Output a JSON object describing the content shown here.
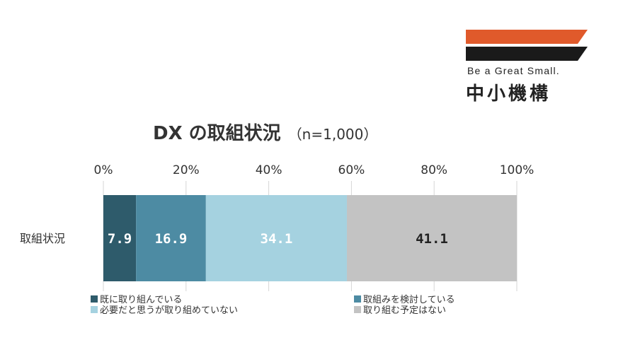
{
  "logo": {
    "tagline": "Be a Great Small.",
    "name": "中小機構",
    "colors": {
      "top_bar": "#e05a2b",
      "bottom_bar": "#1a1a1a"
    }
  },
  "chart_data": {
    "type": "bar",
    "orientation": "horizontal",
    "stacked": true,
    "title": "DX の取組状況",
    "subtitle": "（n=1,000）",
    "categories": [
      "取組状況"
    ],
    "xlim": [
      0,
      100
    ],
    "x_ticks": [
      "0%",
      "20%",
      "40%",
      "60%",
      "80%",
      "100%"
    ],
    "grid": true,
    "legend_position": "bottom",
    "series": [
      {
        "name": "既に取り組んでいる",
        "values": [
          7.9
        ],
        "label": "7.9",
        "color": "#2e5b6b",
        "label_color": "#ffffff"
      },
      {
        "name": "取組みを検討している",
        "values": [
          16.9
        ],
        "label": "16.9",
        "color": "#4d8ba3",
        "label_color": "#ffffff"
      },
      {
        "name": "必要だと思うが取り組めていない",
        "values": [
          34.1
        ],
        "label": "34.1",
        "color": "#a5d2e0",
        "label_color": "#ffffff"
      },
      {
        "name": "取り組む予定はない",
        "values": [
          41.1
        ],
        "label": "41.1",
        "color": "#c3c3c3",
        "label_color": "#222222"
      }
    ]
  }
}
